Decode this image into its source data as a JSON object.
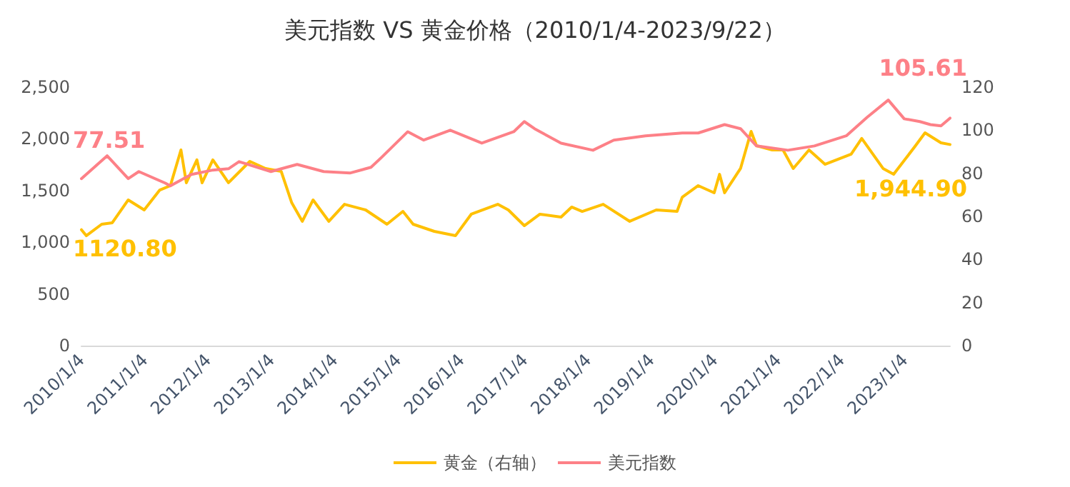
{
  "chart_data": {
    "type": "line",
    "title": "美元指数 VS 黄金价格（2010/1/4-2023/9/22）",
    "legend": "bottom",
    "grid": false,
    "marker": "none",
    "line_style": "solid",
    "xlim": [
      "2010-01-04",
      "2023-09-22"
    ],
    "xticks": [
      {
        "value": "2010-01-04",
        "label": "2010/1/4"
      },
      {
        "value": "2011-01-04",
        "label": "2011/1/4"
      },
      {
        "value": "2012-01-04",
        "label": "2012/1/4"
      },
      {
        "value": "2013-01-04",
        "label": "2013/1/4"
      },
      {
        "value": "2014-01-04",
        "label": "2014/1/4"
      },
      {
        "value": "2015-01-04",
        "label": "2015/1/4"
      },
      {
        "value": "2016-01-04",
        "label": "2016/1/4"
      },
      {
        "value": "2017-01-04",
        "label": "2017/1/4"
      },
      {
        "value": "2018-01-04",
        "label": "2018/1/4"
      },
      {
        "value": "2019-01-04",
        "label": "2019/1/4"
      },
      {
        "value": "2020-01-04",
        "label": "2020/1/4"
      },
      {
        "value": "2021-01-04",
        "label": "2021/1/4"
      },
      {
        "value": "2022-01-04",
        "label": "2022/1/4"
      },
      {
        "value": "2023-01-04",
        "label": "2023/1/4"
      }
    ],
    "ylim": [
      0,
      2500
    ],
    "yticks": [
      {
        "value": 0,
        "label": "0"
      },
      {
        "value": 500,
        "label": "500"
      },
      {
        "value": 1000,
        "label": "1,000"
      },
      {
        "value": 1500,
        "label": "1,500"
      },
      {
        "value": 2000,
        "label": "2,000"
      },
      {
        "value": 2500,
        "label": "2,500"
      }
    ],
    "y2lim": [
      0,
      120
    ],
    "y2ticks": [
      0,
      20,
      40,
      60,
      80,
      100,
      120
    ],
    "series": [
      {
        "name": "黄金（右轴）",
        "color": "#ffc000",
        "x": [
          "2010-01-04",
          "2010-02",
          "2010-05",
          "2010-07",
          "2010-10",
          "2011-01",
          "2011-04",
          "2011-06",
          "2011-08",
          "2011-09",
          "2011-11",
          "2011-12",
          "2012-02",
          "2012-05",
          "2012-09",
          "2012-12",
          "2013-03",
          "2013-05",
          "2013-07",
          "2013-09",
          "2013-12",
          "2014-03",
          "2014-07",
          "2014-11",
          "2015-02",
          "2015-04",
          "2015-08",
          "2015-12",
          "2016-03",
          "2016-08",
          "2016-10",
          "2017-01",
          "2017-04",
          "2017-08",
          "2017-10",
          "2017-12",
          "2018-04",
          "2018-09",
          "2019-02",
          "2019-06",
          "2019-07",
          "2019-10",
          "2020-01",
          "2020-02",
          "2020-03",
          "2020-06",
          "2020-08",
          "2020-09",
          "2020-12",
          "2021-02",
          "2021-04",
          "2021-07",
          "2021-10",
          "2022-03",
          "2022-05",
          "2022-09",
          "2022-11",
          "2023-03",
          "2023-05",
          "2023-08",
          "2023-09-22"
        ],
        "values": [
          1120.8,
          1063,
          1174,
          1188,
          1409,
          1312,
          1505,
          1547,
          1892,
          1575,
          1796,
          1575,
          1796,
          1575,
          1782,
          1713,
          1685,
          1381,
          1202,
          1409,
          1202,
          1367,
          1312,
          1174,
          1298,
          1174,
          1105,
          1063,
          1271,
          1367,
          1312,
          1160,
          1271,
          1243,
          1340,
          1298,
          1367,
          1202,
          1312,
          1298,
          1436,
          1547,
          1478,
          1657,
          1478,
          1713,
          2072,
          1934,
          1892,
          1892,
          1713,
          1892,
          1754,
          1851,
          2003,
          1713,
          1657,
          1920,
          2058,
          1961,
          1944.9
        ],
        "value_labels": [
          "1120.80",
          null,
          null,
          null,
          null,
          null,
          null,
          null,
          null,
          null,
          null,
          null,
          null,
          null,
          null,
          null,
          null,
          null,
          null,
          null,
          null,
          null,
          null,
          null,
          null,
          null,
          null,
          null,
          null,
          null,
          null,
          null,
          null,
          null,
          null,
          null,
          null,
          null,
          null,
          null,
          null,
          null,
          null,
          null,
          null,
          null,
          null,
          null,
          null,
          null,
          null,
          null,
          null,
          null,
          null,
          null,
          null,
          null,
          null,
          null,
          "1,944.90"
        ]
      },
      {
        "name": "美元指数",
        "color": "#fd8087",
        "axis": "y2",
        "x": [
          "2010-01-04",
          "2010-06",
          "2010-10",
          "2010-12",
          "2011-05",
          "2011-06",
          "2011-10",
          "2012-02",
          "2012-05",
          "2012-07",
          "2013-01",
          "2013-06",
          "2013-11",
          "2014-04",
          "2014-08",
          "2014-10",
          "2015-03",
          "2015-06",
          "2015-11",
          "2016-05",
          "2016-11",
          "2017-01",
          "2017-03",
          "2017-08",
          "2018-02",
          "2018-06",
          "2018-12",
          "2019-07",
          "2019-10",
          "2020-03",
          "2020-06",
          "2020-09",
          "2021-03",
          "2021-08",
          "2022-02",
          "2022-06",
          "2022-10",
          "2023-01",
          "2023-04",
          "2023-06",
          "2023-08",
          "2023-09-22"
        ],
        "values": [
          77.51,
          88.1,
          77.5,
          80.8,
          75.5,
          74.2,
          79.5,
          81.5,
          82.1,
          85.4,
          80.8,
          84.1,
          80.8,
          80.1,
          82.8,
          87.4,
          99.3,
          95.4,
          100,
          94,
          99.3,
          104,
          100.7,
          94,
          90.7,
          95.4,
          97.4,
          98.7,
          98.7,
          102.6,
          100.7,
          92.7,
          90.7,
          92.7,
          97.4,
          106,
          114,
          105.3,
          104,
          102.6,
          102,
          105.61
        ],
        "value_labels": [
          "77.51",
          null,
          null,
          null,
          null,
          null,
          null,
          null,
          null,
          null,
          null,
          null,
          null,
          null,
          null,
          null,
          null,
          null,
          null,
          null,
          null,
          null,
          null,
          null,
          null,
          null,
          null,
          null,
          null,
          null,
          null,
          null,
          null,
          null,
          null,
          null,
          null,
          null,
          null,
          null,
          null,
          "105.61"
        ]
      }
    ]
  }
}
